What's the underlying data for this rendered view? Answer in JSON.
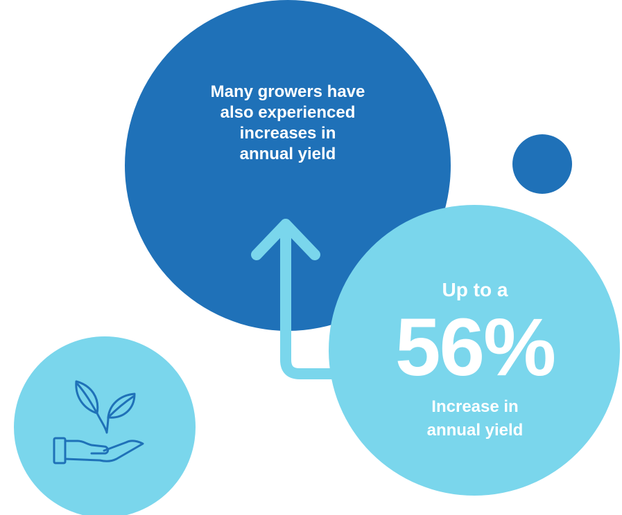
{
  "colors": {
    "dark_blue": "#1f71b8",
    "light_blue": "#7ad6ec",
    "icon_stroke": "#1f71b8",
    "text": "#ffffff"
  },
  "headline": "Many growers have\nalso experienced\nincreases in\nannual yield",
  "stat": {
    "prefix": "Up to a",
    "value": "56%",
    "caption": "Increase in\nannual yield"
  },
  "icons": {
    "growth_arrow": "arrow-up-icon",
    "plant_in_hand": "plant-hand-icon"
  }
}
